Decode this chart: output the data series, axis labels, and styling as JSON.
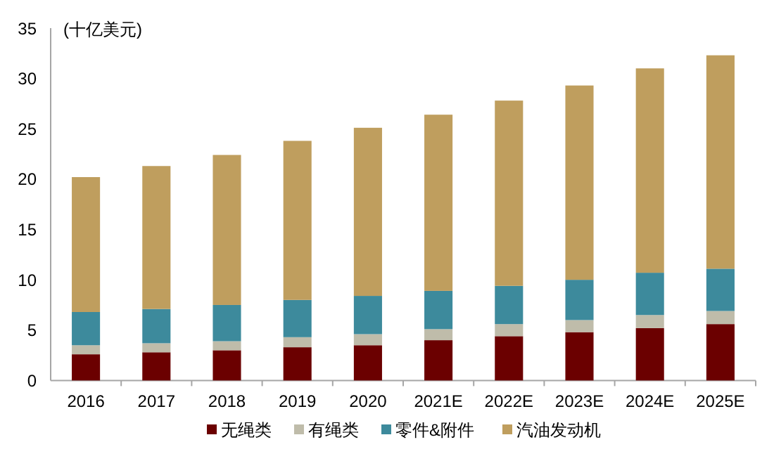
{
  "chart_data": {
    "type": "bar",
    "stacked": true,
    "ylabel": "(十亿美元)",
    "categories": [
      "2016",
      "2017",
      "2018",
      "2019",
      "2020",
      "2021E",
      "2022E",
      "2023E",
      "2024E",
      "2025E"
    ],
    "ylim": [
      0,
      35
    ],
    "yticks": [
      0,
      5,
      10,
      15,
      20,
      25,
      30,
      35
    ],
    "legend": "bottom",
    "series": [
      {
        "name": "无绳类",
        "color": "#6b0000",
        "values": [
          2.6,
          2.8,
          3.0,
          3.3,
          3.5,
          4.0,
          4.4,
          4.8,
          5.2,
          5.6
        ]
      },
      {
        "name": "有绳类",
        "color": "#bfbcaa",
        "values": [
          0.9,
          0.9,
          0.9,
          1.0,
          1.1,
          1.1,
          1.2,
          1.2,
          1.3,
          1.3
        ]
      },
      {
        "name": "零件&附件",
        "color": "#3d8a9c",
        "values": [
          3.3,
          3.4,
          3.6,
          3.7,
          3.8,
          3.8,
          3.8,
          4.0,
          4.2,
          4.2
        ]
      },
      {
        "name": "汽油发动机",
        "color": "#bf9e5e",
        "values": [
          13.4,
          14.2,
          14.9,
          15.8,
          16.7,
          17.5,
          18.4,
          19.3,
          20.3,
          21.2
        ]
      }
    ]
  }
}
